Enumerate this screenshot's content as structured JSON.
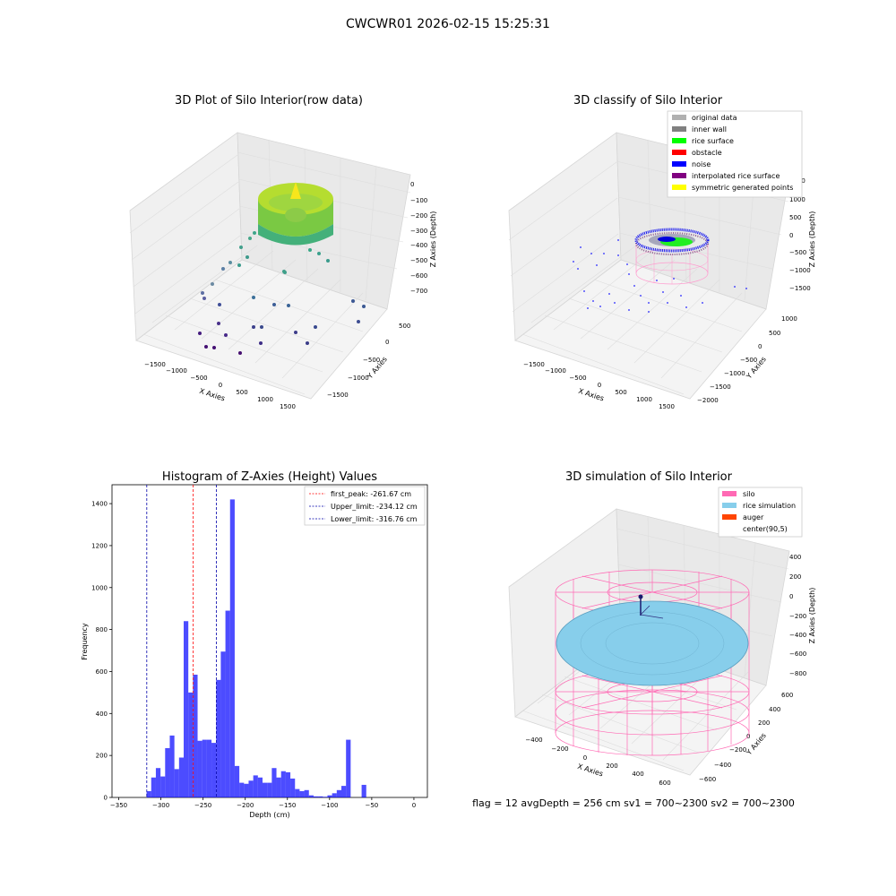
{
  "suptitle": "CWCWR01 2026-02-15 15:25:31",
  "footer": "flag = 12  avgDepth = 256 cm  sv1 = 700~2300  sv2 = 700~2300",
  "colors": {
    "hist_bar": "#0000ff",
    "first_peak": "#ff0000",
    "limits": "#0000aa",
    "silo": "#ff69b4",
    "rice": "#87ceeb",
    "auger": "#ff4500"
  },
  "panels": {
    "raw": {
      "title": "3D Plot of Silo Interior(row data)",
      "xlabel": "X Axies",
      "ylabel": "Y Axies",
      "zlabel": "Z Axies (Depth)",
      "xticks": [
        "−1500",
        "−1000",
        "−500",
        "0",
        "500",
        "1000",
        "1500"
      ],
      "yticks": [
        "500",
        "0",
        "−500",
        "−1000",
        "−1500"
      ],
      "zticks": [
        "0",
        "−100",
        "−200",
        "−300",
        "−400",
        "−500",
        "−600",
        "−700"
      ]
    },
    "classify": {
      "title": "3D classify of Silo Interior",
      "xlabel": "X Axies",
      "ylabel": "Y Axies",
      "zlabel": "Z Axies (Depth)",
      "xticks": [
        "−1500",
        "−1000",
        "−500",
        "0",
        "500",
        "1000",
        "1500"
      ],
      "yticks": [
        "1000",
        "500",
        "0",
        "−500",
        "−1000",
        "−1500",
        "−2000"
      ],
      "zticks": [
        "1500",
        "1000",
        "500",
        "0",
        "−500",
        "−1000",
        "−1500"
      ],
      "legend": [
        {
          "label": "original data",
          "color": "#b0b0b0"
        },
        {
          "label": "inner wall",
          "color": "#808080"
        },
        {
          "label": "rice surface",
          "color": "#00ff00"
        },
        {
          "label": "obstacle",
          "color": "#ff0000"
        },
        {
          "label": "noise",
          "color": "#0000ff"
        },
        {
          "label": "interpolated rice surface",
          "color": "#800080"
        },
        {
          "label": "symmetric generated points",
          "color": "#ffff00"
        }
      ]
    },
    "simulation": {
      "title": "3D simulation of Silo Interior",
      "xlabel": "X Axies",
      "ylabel": "Y Axies",
      "zlabel": "Z Axies (Depth)",
      "xticks": [
        "−400",
        "−200",
        "0",
        "200",
        "400",
        "600"
      ],
      "yticks": [
        "600",
        "400",
        "200",
        "0",
        "−200",
        "−400",
        "−600"
      ],
      "zticks": [
        "400",
        "200",
        "0",
        "−200",
        "−400",
        "−600",
        "−800"
      ],
      "legend": [
        {
          "label": "silo",
          "color": "#ff69b4"
        },
        {
          "label": "rice simulation",
          "color": "#87ceeb"
        },
        {
          "label": "auger",
          "color": "#ff4500"
        },
        {
          "label": "center(90,5)",
          "color": ""
        }
      ]
    }
  },
  "chart_data": {
    "type": "bar",
    "title": "Histogram of Z-Axies (Height) Values",
    "xlabel": "Depth (cm)",
    "ylabel": "Frequency",
    "xlim": [
      -358,
      16
    ],
    "ylim": [
      0,
      1490
    ],
    "xticks": [
      -350,
      -300,
      -250,
      -200,
      -150,
      -100,
      -50,
      0
    ],
    "yticks": [
      0,
      200,
      400,
      600,
      800,
      1000,
      1200,
      1400
    ],
    "bin_width": 5.5,
    "bins": [
      {
        "x": -317.0,
        "value": 30
      },
      {
        "x": -311.5,
        "value": 95
      },
      {
        "x": -306.0,
        "value": 140
      },
      {
        "x": -300.5,
        "value": 100
      },
      {
        "x": -295.0,
        "value": 235
      },
      {
        "x": -289.5,
        "value": 295
      },
      {
        "x": -284.0,
        "value": 135
      },
      {
        "x": -278.5,
        "value": 190
      },
      {
        "x": -273.0,
        "value": 840
      },
      {
        "x": -267.5,
        "value": 500
      },
      {
        "x": -262.0,
        "value": 585
      },
      {
        "x": -256.5,
        "value": 270
      },
      {
        "x": -251.0,
        "value": 275
      },
      {
        "x": -245.5,
        "value": 275
      },
      {
        "x": -240.0,
        "value": 260
      },
      {
        "x": -234.5,
        "value": 560
      },
      {
        "x": -229.0,
        "value": 695
      },
      {
        "x": -223.5,
        "value": 890
      },
      {
        "x": -218.0,
        "value": 1420
      },
      {
        "x": -212.5,
        "value": 150
      },
      {
        "x": -207.0,
        "value": 70
      },
      {
        "x": -201.5,
        "value": 65
      },
      {
        "x": -196.0,
        "value": 80
      },
      {
        "x": -190.5,
        "value": 105
      },
      {
        "x": -185.0,
        "value": 95
      },
      {
        "x": -179.5,
        "value": 70
      },
      {
        "x": -174.0,
        "value": 70
      },
      {
        "x": -168.5,
        "value": 140
      },
      {
        "x": -163.0,
        "value": 95
      },
      {
        "x": -157.5,
        "value": 125
      },
      {
        "x": -152.0,
        "value": 120
      },
      {
        "x": -146.5,
        "value": 90
      },
      {
        "x": -141.0,
        "value": 40
      },
      {
        "x": -135.5,
        "value": 30
      },
      {
        "x": -130.0,
        "value": 35
      },
      {
        "x": -124.5,
        "value": 10
      },
      {
        "x": -119.0,
        "value": 5
      },
      {
        "x": -113.5,
        "value": 5
      },
      {
        "x": -108.0,
        "value": 3
      },
      {
        "x": -102.5,
        "value": 10
      },
      {
        "x": -97.0,
        "value": 20
      },
      {
        "x": -91.5,
        "value": 35
      },
      {
        "x": -86.0,
        "value": 55
      },
      {
        "x": -80.5,
        "value": 275
      },
      {
        "x": -62.0,
        "value": 60
      }
    ],
    "vlines": [
      {
        "label": "first_peak: -261.67 cm",
        "x": -261.67,
        "color": "#ff0000"
      },
      {
        "label": "Upper_limit: -234.12 cm",
        "x": -234.12,
        "color": "#0000aa"
      },
      {
        "label": "Lower_limit: -316.76 cm",
        "x": -316.76,
        "color": "#0000aa"
      }
    ],
    "legend_position": "top-right"
  }
}
